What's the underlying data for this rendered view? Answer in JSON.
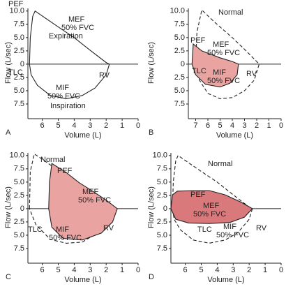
{
  "chart_data": [
    {
      "type": "line",
      "label": "A",
      "ylabel": "Flow (L/sec)",
      "xlabel": "Volume (L)",
      "xlim": [
        6.9,
        0
      ],
      "ylim": [
        -10,
        10.5
      ],
      "xticks": [
        6,
        5,
        4,
        3,
        2,
        1,
        0
      ],
      "yticks": [
        {
          "value": 10,
          "label": "10.0"
        },
        7.5,
        {
          "value": 5,
          "label": "5.0"
        },
        2.5,
        0,
        {
          "value": -2.5,
          "label": "2.5"
        },
        {
          "value": -5,
          "label": "5.0"
        },
        {
          "value": -7.5,
          "label": "7.5"
        }
      ],
      "annotations": [
        "PEF",
        "MEF",
        "50% FVC",
        "Expiration",
        "TLC",
        "MIF",
        "50% FVC",
        "Inspiration",
        "RV"
      ],
      "series": [
        {
          "color": "#222222",
          "dashed": false,
          "fill": null,
          "x": [
            6.8,
            6.75,
            6.6,
            6.45,
            5,
            4,
            3,
            2,
            1.8,
            2,
            2.7,
            3.5,
            4.5,
            5.5,
            6.3,
            6.7,
            6.8
          ],
          "values": [
            0,
            5,
            9,
            10,
            7,
            5,
            2.6,
            0.3,
            0,
            -2,
            -4.5,
            -5.9,
            -6.5,
            -5.9,
            -4,
            -2,
            0
          ]
        }
      ]
    },
    {
      "type": "line",
      "label": "B",
      "ylabel": "Flow (L/sec)",
      "xlabel": "Volume (L)",
      "xlim": [
        7.6,
        0
      ],
      "ylim": [
        -10,
        10.5
      ],
      "xticks": [
        7,
        6,
        5,
        4,
        3,
        2,
        1,
        0
      ],
      "yticks": [
        {
          "value": 10,
          "label": "10.0"
        },
        7.5,
        {
          "value": 5,
          "label": "5.0"
        },
        2.5,
        0,
        {
          "value": -2.5,
          "label": "2.5"
        },
        {
          "value": -5,
          "label": "5.0"
        },
        {
          "value": -7.5,
          "label": "7.5"
        }
      ],
      "annotations": [
        "Normal",
        "PEF",
        "MEF",
        "50% FVC",
        "TLC",
        "MIF",
        "50% FVC",
        "RV"
      ],
      "series": [
        {
          "color": "#222222",
          "dashed": true,
          "fill": null,
          "x": [
            7.0,
            6.9,
            6.5,
            5.5,
            4,
            3,
            2,
            1.8,
            2.2,
            3,
            4,
            5,
            6,
            6.7,
            7.0
          ],
          "values": [
            0,
            6,
            10.2,
            8,
            5,
            2.8,
            0.5,
            0,
            -3,
            -5,
            -6.3,
            -6.5,
            -5.5,
            -3,
            0
          ]
        },
        {
          "color": "#222222",
          "dashed": false,
          "fill": "#e9a3a1",
          "x": [
            7.3,
            7.2,
            6.5,
            5,
            4,
            3.5,
            3.6,
            4.2,
            5,
            6.2,
            7,
            7.3
          ],
          "values": [
            0,
            3.8,
            2.5,
            1.2,
            0.5,
            0,
            -2,
            -3.6,
            -4.3,
            -3.8,
            -2,
            0
          ]
        }
      ]
    },
    {
      "type": "line",
      "label": "C",
      "ylabel": "Flow (L/sec)",
      "xlabel": "Volume (L)",
      "xlim": [
        6.9,
        0
      ],
      "ylim": [
        -10,
        10.5
      ],
      "xticks": [
        6,
        5,
        4,
        3,
        2,
        1,
        0
      ],
      "yticks": [
        {
          "value": 10,
          "label": "10.0"
        },
        7.5,
        {
          "value": 5,
          "label": "5.0"
        },
        2.5,
        0,
        {
          "value": -2.5,
          "label": "2.5"
        },
        {
          "value": -5,
          "label": "5.0"
        },
        {
          "value": -7.5,
          "label": "7.5"
        }
      ],
      "annotations": [
        "Normal",
        "PEF",
        "MEF",
        "50% FVC",
        "TLC",
        "MIF",
        "50% FVC",
        "RV"
      ],
      "series": [
        {
          "color": "#222222",
          "dashed": true,
          "fill": null,
          "x": [
            6.8,
            6.75,
            6.5,
            6.1,
            5,
            4,
            3,
            2,
            1.8,
            2.5,
            3.5,
            4.5,
            5.5,
            6.4,
            6.8
          ],
          "values": [
            0,
            7,
            10.3,
            9.5,
            7.2,
            5.1,
            2.8,
            0.4,
            0,
            -4.5,
            -6.3,
            -6.5,
            -5.8,
            -3,
            0
          ]
        },
        {
          "color": "#222222",
          "dashed": false,
          "fill": "#e9a3a1",
          "x": [
            5.6,
            5.55,
            5.4,
            4.5,
            3.7,
            2.8,
            2,
            1.3,
            1.6,
            2.3,
            3.5,
            4.7,
            5.4,
            5.6
          ],
          "values": [
            0,
            5,
            8.5,
            6.8,
            4.9,
            3.2,
            1.6,
            0,
            -2.5,
            -4.6,
            -5.9,
            -5.6,
            -3.5,
            0
          ]
        }
      ]
    },
    {
      "type": "line",
      "label": "D",
      "ylabel": "Flow (L/sec)",
      "xlabel": "Volume (L)",
      "xlim": [
        6.9,
        0
      ],
      "ylim": [
        -10,
        10.5
      ],
      "xticks": [
        6,
        5,
        4,
        3,
        2,
        1,
        0
      ],
      "yticks": [
        {
          "value": 10,
          "label": "10.0"
        },
        7.5,
        {
          "value": 5,
          "label": "5.0"
        },
        2.5,
        0,
        {
          "value": -2.5,
          "label": "2.5"
        },
        {
          "value": -5,
          "label": "5.0"
        },
        {
          "value": -7.5,
          "label": "7.5"
        }
      ],
      "annotations": [
        "Normal",
        "PEF",
        "MEF",
        "50% FVC",
        "TLC",
        "MIF",
        "50% FVC",
        "RV"
      ],
      "series": [
        {
          "color": "#222222",
          "dashed": true,
          "fill": null,
          "x": [
            6.8,
            6.75,
            6.6,
            6.45,
            5,
            4,
            3,
            2,
            1.8,
            2,
            2.7,
            3.5,
            4.5,
            5.5,
            6.3,
            6.7,
            6.8
          ],
          "values": [
            0,
            5,
            9,
            10,
            7,
            5,
            2.6,
            0.3,
            0,
            -2,
            -4.5,
            -5.9,
            -6.5,
            -5.9,
            -4,
            -2,
            0
          ]
        },
        {
          "color": "#222222",
          "dashed": false,
          "fill": "#d9797b",
          "x": [
            6.9,
            6.8,
            6.5,
            5.5,
            4.5,
            3.5,
            2.5,
            1.8,
            2.3,
            3.2,
            4.5,
            5.8,
            6.6,
            6.9
          ],
          "values": [
            0,
            2.6,
            3.3,
            3.4,
            3.4,
            2.6,
            1.2,
            0,
            -1.6,
            -2.6,
            -2.8,
            -2.7,
            -2,
            0
          ]
        }
      ]
    }
  ]
}
